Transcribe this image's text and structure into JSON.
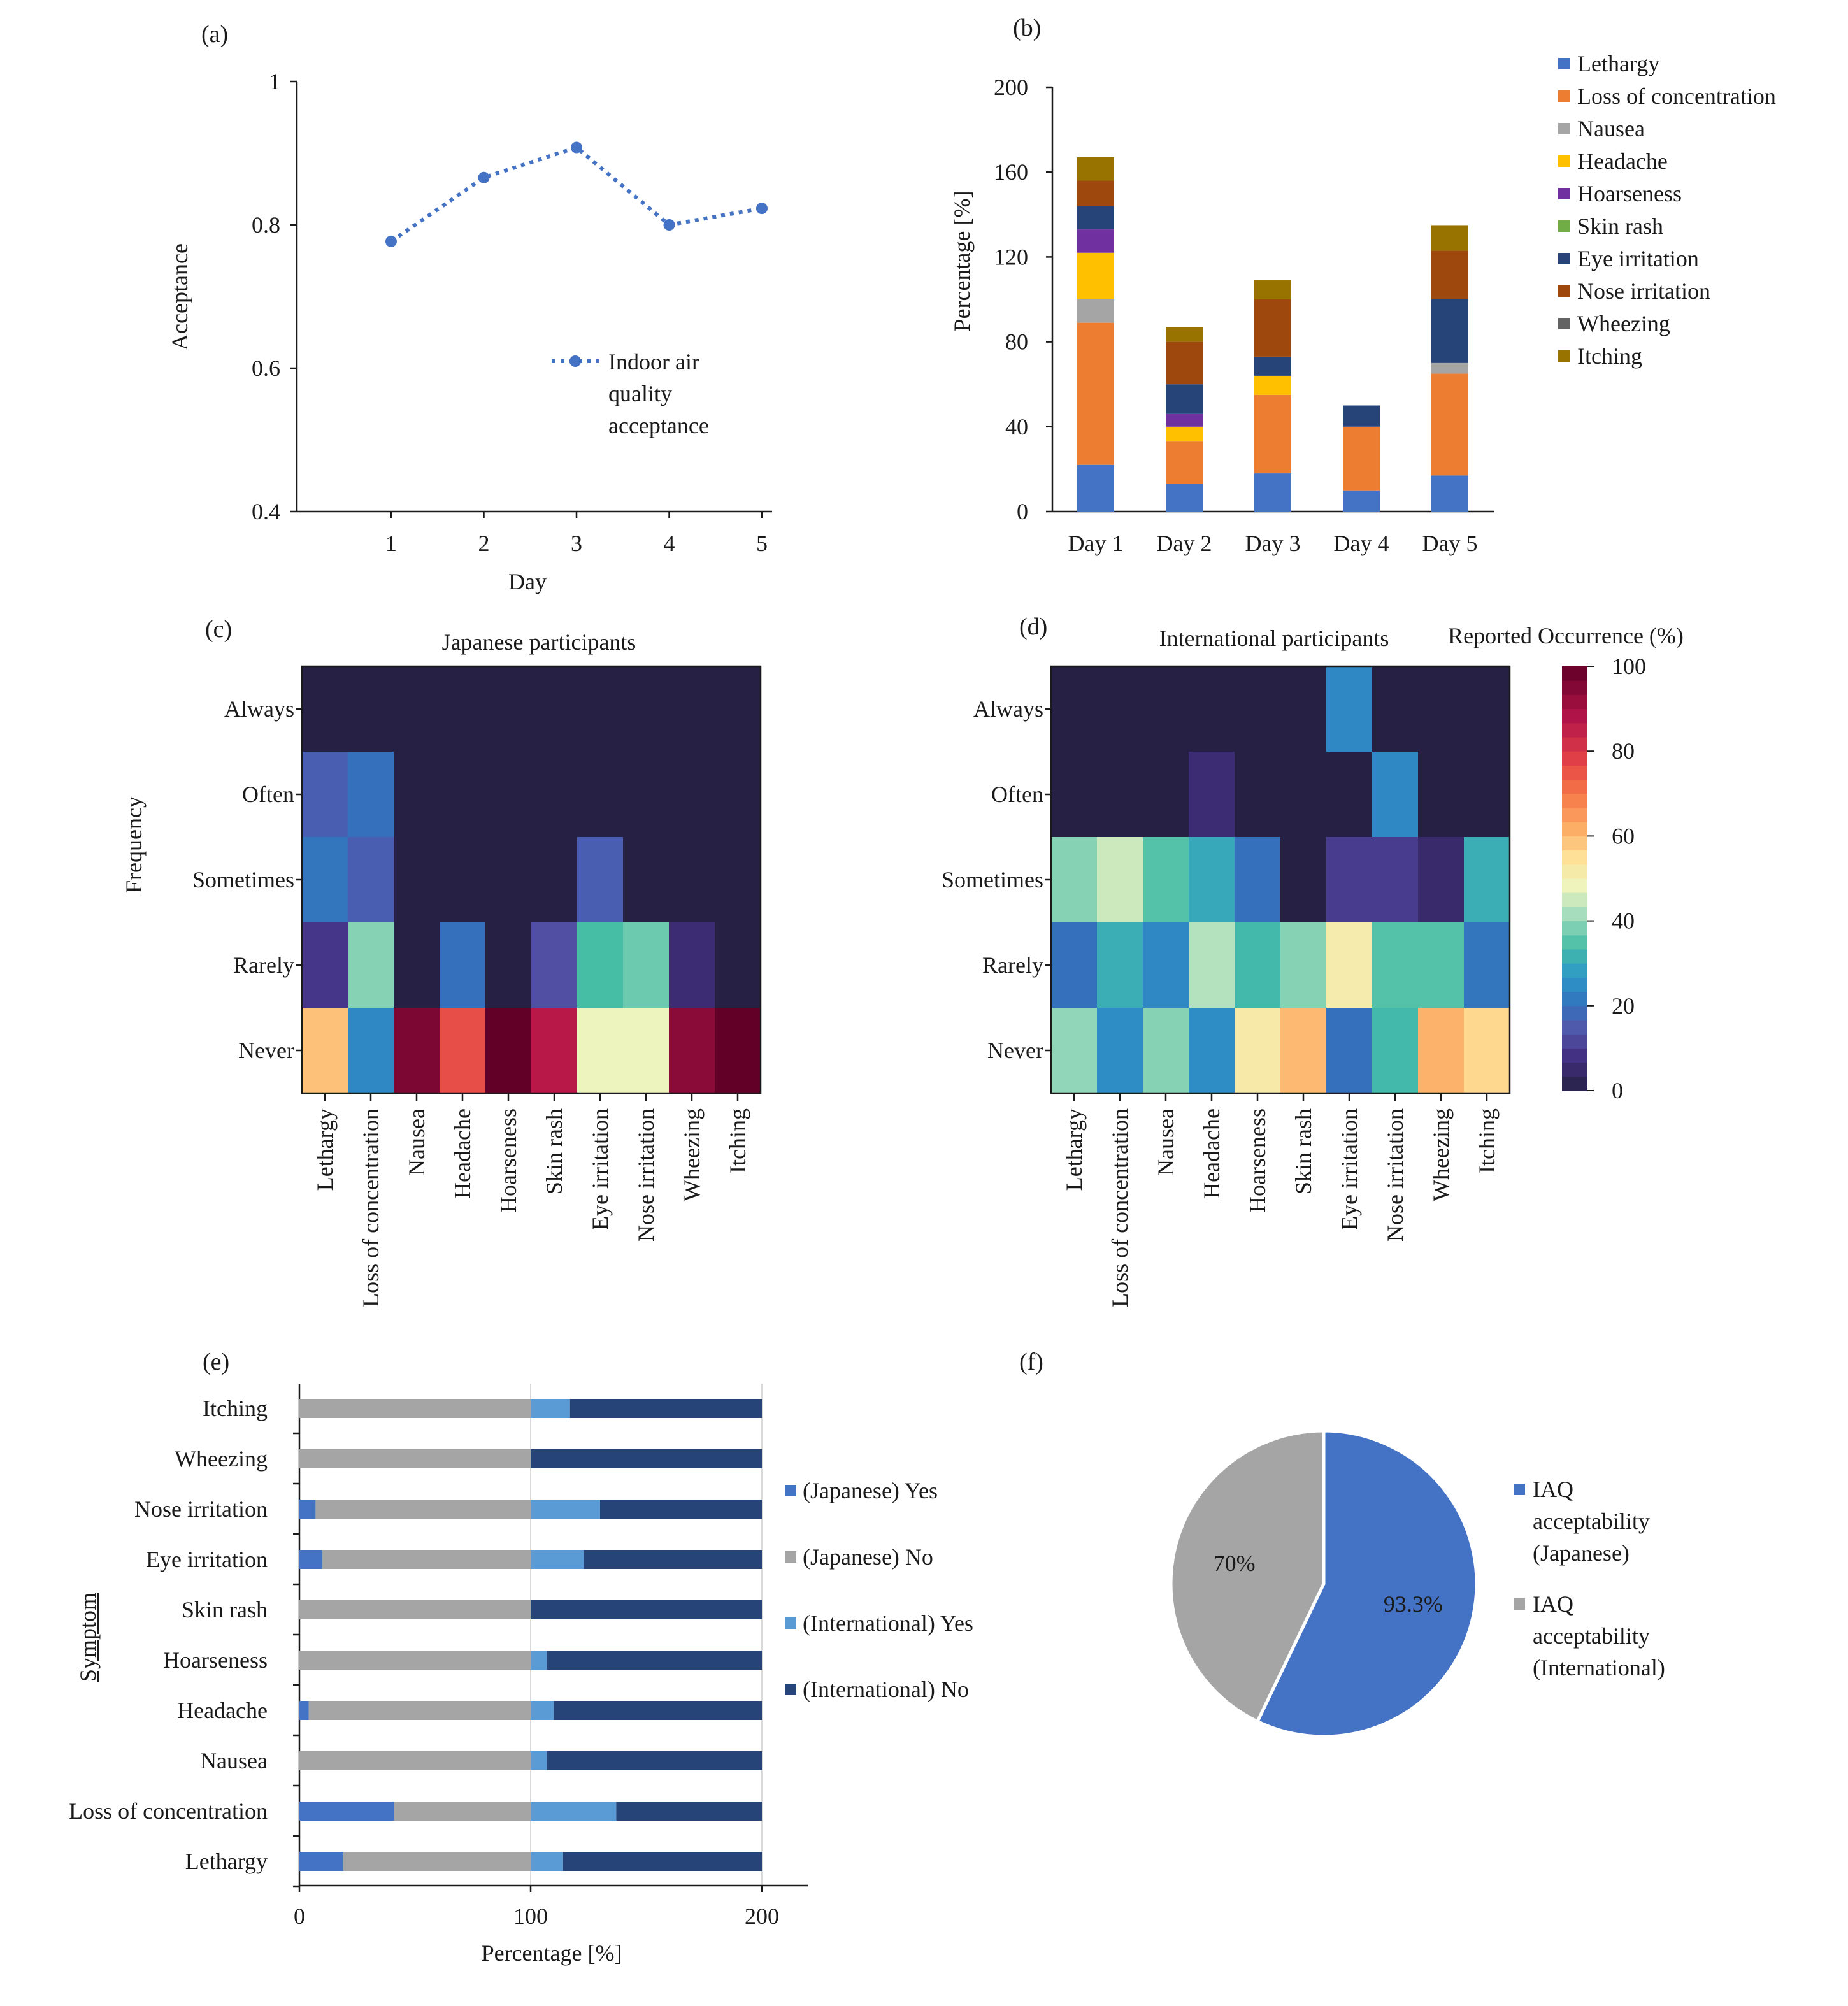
{
  "chart_data": [
    {
      "id": "a",
      "panel_label": "(a)",
      "type": "line",
      "x": [
        "1",
        "2",
        "3",
        "4",
        "5"
      ],
      "series": [
        {
          "name": "Indoor air quality acceptance",
          "legend_lines": [
            "Indoor air",
            "quality",
            "acceptance"
          ],
          "values": [
            0.777,
            0.866,
            0.908,
            0.8,
            0.823
          ],
          "color": "#4472C4"
        }
      ],
      "xlabel": "Day",
      "ylabel": "Acceptance",
      "ylim": [
        0.4,
        1
      ],
      "yticks": [
        "0.4",
        "0.6",
        "0.8",
        "1"
      ],
      "legend_position": "center-right"
    },
    {
      "id": "b",
      "panel_label": "(b)",
      "type": "bar",
      "stacked": true,
      "categories": [
        "Day 1",
        "Day 2",
        "Day 3",
        "Day 4",
        "Day 5"
      ],
      "series": [
        {
          "name": "Lethargy",
          "values": [
            22,
            13,
            18,
            10,
            17
          ],
          "color": "#4472C4"
        },
        {
          "name": "Loss of concentration",
          "values": [
            67,
            20,
            37,
            30,
            48
          ],
          "color": "#ED7D31"
        },
        {
          "name": "Nausea",
          "values": [
            11,
            0,
            0,
            0,
            5
          ],
          "color": "#A5A5A5"
        },
        {
          "name": "Headache",
          "values": [
            22,
            7,
            9,
            0,
            0
          ],
          "color": "#FFC000"
        },
        {
          "name": "Hoarseness",
          "values": [
            11,
            6,
            0,
            0,
            0
          ],
          "color": "#7030A0"
        },
        {
          "name": "Skin rash",
          "values": [
            0,
            0,
            0,
            0,
            0
          ],
          "color": "#70AD47"
        },
        {
          "name": "Eye irritation",
          "values": [
            11,
            14,
            9,
            10,
            30
          ],
          "color": "#264478"
        },
        {
          "name": "Nose irritation",
          "values": [
            12,
            20,
            27,
            0,
            23
          ],
          "color": "#9E480E"
        },
        {
          "name": "Wheezing",
          "values": [
            0,
            0,
            0,
            0,
            0
          ],
          "color": "#636363"
        },
        {
          "name": "Itching",
          "values": [
            11,
            7,
            9,
            0,
            12
          ],
          "color": "#997300"
        }
      ],
      "xlabel": "",
      "ylabel": "Percentage  [%]",
      "ylim": [
        0,
        200
      ],
      "yticks": [
        "0",
        "40",
        "80",
        "120",
        "160",
        "200"
      ],
      "legend_position": "right"
    },
    {
      "id": "c",
      "panel_label": "(c)",
      "type": "heatmap",
      "title": "Japanese participants",
      "ylabel": "Frequency",
      "rows": [
        "Always",
        "Often",
        "Sometimes",
        "Rarely",
        "Never"
      ],
      "columns": [
        "Lethargy",
        "Loss of concentration",
        "Nausea",
        "Headache",
        "Hoarseness",
        "Skin rash",
        "Eye irritation",
        "Nose irritation",
        "Wheezing",
        "Itching"
      ],
      "values": [
        [
          0,
          0,
          0,
          0,
          0,
          0,
          0,
          0,
          0,
          0
        ],
        [
          16,
          20,
          0,
          0,
          0,
          0,
          0,
          0,
          0,
          0
        ],
        [
          21,
          16,
          0,
          0,
          0,
          0,
          16,
          0,
          0,
          0
        ],
        [
          9,
          39,
          0,
          20,
          0,
          13,
          34,
          37,
          6,
          0
        ],
        [
          59,
          24,
          96,
          76,
          100,
          87,
          48,
          48,
          94,
          100
        ]
      ],
      "colorbar": {
        "label": "Reported Occurrence (%)",
        "ticks": [
          "0",
          "20",
          "40",
          "60",
          "80",
          "100"
        ]
      }
    },
    {
      "id": "d",
      "panel_label": "(d)",
      "type": "heatmap",
      "title": "International participants",
      "rows": [
        "Always",
        "Often",
        "Sometimes",
        "Rarely",
        "Never"
      ],
      "columns": [
        "Lethargy",
        "Loss of concentration",
        "Nausea",
        "Headache",
        "Hoarseness",
        "Skin rash",
        "Eye irritation",
        "Nose irritation",
        "Wheezing",
        "Itching"
      ],
      "values": [
        [
          0,
          0,
          0,
          0,
          0,
          0,
          24,
          0,
          0,
          0
        ],
        [
          0,
          0,
          0,
          6,
          0,
          0,
          0,
          24,
          0,
          0
        ],
        [
          39,
          45,
          35,
          30,
          20,
          0,
          10,
          10,
          5,
          31
        ],
        [
          20,
          31,
          24,
          43,
          33,
          39,
          51,
          35,
          35,
          21
        ],
        [
          40,
          25,
          39,
          25,
          52,
          60,
          20,
          33,
          61,
          56
        ]
      ],
      "colorbar": {
        "label": "Reported Occurrence (%)",
        "ticks": [
          "0",
          "20",
          "40",
          "60",
          "80",
          "100"
        ]
      }
    },
    {
      "id": "e",
      "panel_label": "(e)",
      "type": "bar",
      "orientation": "horizontal",
      "stacked": true,
      "categories": [
        "Lethargy",
        "Loss of concentration",
        "Nausea",
        "Headache",
        "Hoarseness",
        "Skin rash",
        "Eye irritation",
        "Nose irritation",
        "Wheezing",
        "Itching"
      ],
      "series": [
        {
          "name": "(Japanese) Yes",
          "values": [
            19,
            41,
            0,
            4,
            0,
            0,
            10,
            7,
            0,
            0
          ],
          "color": "#4472C4"
        },
        {
          "name": "(Japanese) No",
          "values": [
            81,
            59,
            100,
            96,
            100,
            100,
            90,
            93,
            100,
            100
          ],
          "color": "#A5A5A5"
        },
        {
          "name": "(International) Yes",
          "values": [
            14,
            37,
            7,
            10,
            7,
            0,
            23,
            30,
            0,
            17
          ],
          "color": "#5B9BD5"
        },
        {
          "name": "(International) No",
          "values": [
            86,
            63,
            93,
            90,
            93,
            100,
            77,
            70,
            100,
            83
          ],
          "color": "#264478"
        }
      ],
      "xlabel": "Percentage  [%]",
      "ylabel": "Symptom",
      "xlim": [
        0,
        200
      ],
      "xticks": [
        "0",
        "100",
        "200"
      ],
      "legend_position": "right"
    },
    {
      "id": "f",
      "panel_label": "(f)",
      "type": "pie",
      "slices": [
        {
          "name": "IAQ acceptability (Japanese)",
          "legend_lines": [
            "IAQ",
            "acceptability",
            "(Japanese)"
          ],
          "value": 93.3,
          "label": "93.3%",
          "color": "#4472C4"
        },
        {
          "name": "IAQ acceptability (International)",
          "legend_lines": [
            "IAQ",
            "acceptability",
            "(International)"
          ],
          "value": 70,
          "label": "70%",
          "color": "#A5A5A5"
        }
      ],
      "legend_position": "right"
    }
  ]
}
